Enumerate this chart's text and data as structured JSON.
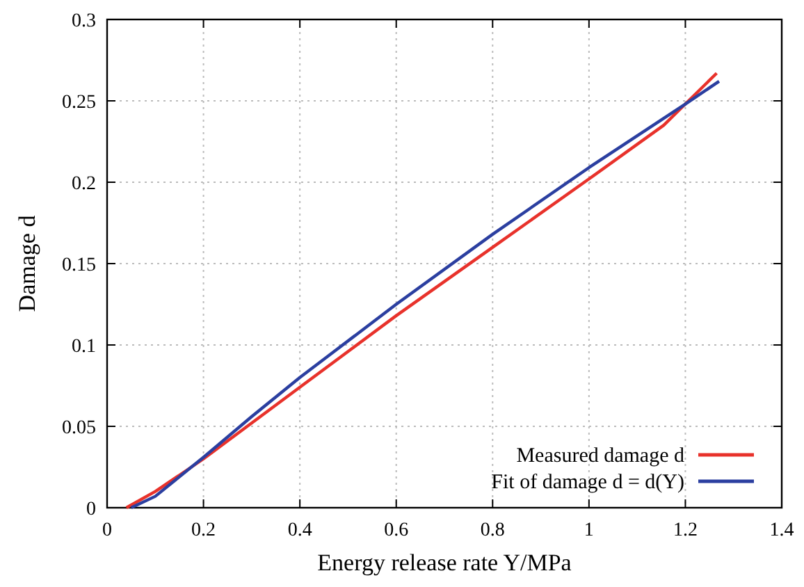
{
  "chart_data": {
    "type": "line",
    "xlabel": "Energy release rate Y/MPa",
    "ylabel": "Damage d",
    "xlim": [
      0,
      1.4
    ],
    "ylim": [
      0,
      0.3
    ],
    "xticks": [
      0,
      0.2,
      0.4,
      0.6,
      0.8,
      1,
      1.2,
      1.4
    ],
    "yticks": [
      0,
      0.05,
      0.1,
      0.15,
      0.2,
      0.25,
      0.3
    ],
    "grid": true,
    "legend": "bottom right",
    "line_style": "solid",
    "marker": "none",
    "series": [
      {
        "name": "Measured damage d",
        "color": "#e8322b",
        "x": [
          0.04,
          0.1,
          0.15,
          0.2,
          0.4,
          0.6,
          0.8,
          1.0,
          1.155,
          1.265
        ],
        "values": [
          0,
          0.01,
          0.02,
          0.03,
          0.074,
          0.118,
          0.16,
          0.202,
          0.235,
          0.267
        ]
      },
      {
        "name": "Fit of damage d = d(Y)",
        "color": "#2b3fa0",
        "x": [
          0.05,
          0.1,
          0.15,
          0.2,
          0.3,
          0.4,
          0.6,
          0.8,
          1.0,
          1.2,
          1.27
        ],
        "values": [
          0,
          0.007,
          0.019,
          0.031,
          0.056,
          0.08,
          0.125,
          0.168,
          0.209,
          0.248,
          0.262
        ]
      }
    ]
  }
}
